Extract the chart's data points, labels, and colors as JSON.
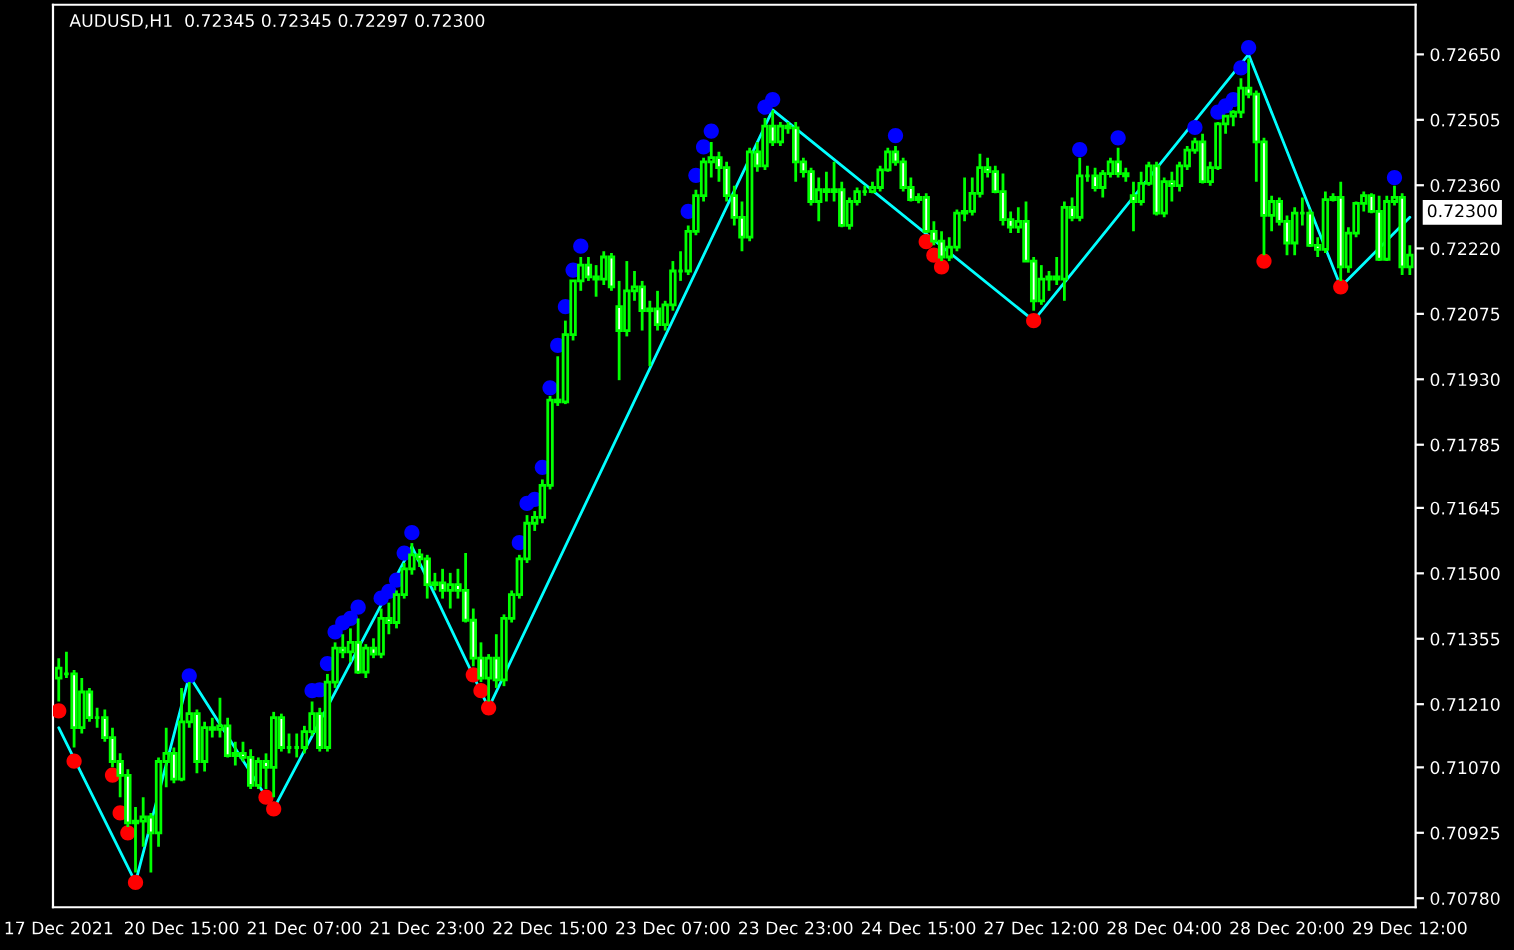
{
  "chart_data": {
    "type": "candlestick",
    "title": "AUDUSD,H1  0.72345 0.72345 0.72297 0.72300",
    "color": "#00ff00",
    "categories": [
      "17 Dec 2021",
      null,
      null,
      null,
      null,
      null,
      null,
      null,
      null,
      null,
      null,
      null,
      null,
      null,
      null,
      null,
      "20 Dec 15:00",
      null,
      null,
      null,
      null,
      null,
      null,
      null,
      null,
      null,
      null,
      null,
      null,
      null,
      null,
      null,
      "21 Dec 07:00",
      null,
      null,
      null,
      null,
      null,
      null,
      null,
      null,
      null,
      null,
      null,
      null,
      null,
      null,
      null,
      "21 Dec 23:00",
      null,
      null,
      null,
      null,
      null,
      null,
      null,
      null,
      null,
      null,
      null,
      null,
      null,
      null,
      null,
      "22 Dec 15:00",
      null,
      null,
      null,
      null,
      null,
      null,
      null,
      null,
      null,
      null,
      null,
      null,
      null,
      null,
      null,
      "23 Dec 07:00",
      null,
      null,
      null,
      null,
      null,
      null,
      null,
      null,
      null,
      null,
      null,
      null,
      null,
      null,
      null,
      "23 Dec 23:00",
      null,
      null,
      null,
      null,
      null,
      null,
      null,
      null,
      null,
      null,
      null,
      null,
      null,
      null,
      null,
      "24 Dec 15:00",
      null,
      null,
      null,
      null,
      null,
      null,
      null,
      null,
      null,
      null,
      null,
      null,
      null,
      null,
      null,
      "27 Dec 12:00",
      null,
      null,
      null,
      null,
      null,
      null,
      null,
      null,
      null,
      null,
      null,
      null,
      null,
      null,
      null,
      "28 Dec 04:00",
      null,
      null,
      null,
      null,
      null,
      null,
      null,
      null,
      null,
      null,
      null,
      null,
      null,
      null,
      null,
      "28 Dec 20:00",
      null,
      null,
      null,
      null,
      null,
      null,
      null,
      null,
      null,
      null,
      null,
      null,
      null,
      null,
      null,
      "29 Dec 12:00"
    ],
    "ohlc": [
      [
        0.71268,
        0.71312,
        0.71216,
        0.7129
      ],
      [
        0.71277,
        0.71326,
        0.71268,
        0.71277
      ],
      [
        0.71277,
        0.71286,
        0.71114,
        0.71158
      ],
      [
        0.71158,
        0.71268,
        0.71145,
        0.71237
      ],
      [
        0.71237,
        0.71246,
        0.71171,
        0.7118
      ],
      [
        0.7118,
        0.71202,
        0.71158,
        0.7118
      ],
      [
        0.7118,
        0.71198,
        0.71127,
        0.71136
      ],
      [
        0.71136,
        0.71158,
        0.7107,
        0.71083
      ],
      [
        0.71083,
        0.71101,
        0.71004,
        0.71052
      ],
      [
        0.71052,
        0.71066,
        0.70938,
        0.70947
      ],
      [
        0.70947,
        0.70982,
        0.70837,
        0.70951
      ],
      [
        0.70951,
        0.71004,
        0.70894,
        0.7096
      ],
      [
        0.7096,
        0.70969,
        0.70837,
        0.70925
      ],
      [
        0.70925,
        0.71092,
        0.70894,
        0.71083
      ],
      [
        0.71083,
        0.71158,
        0.71026,
        0.71101
      ],
      [
        0.71101,
        0.71114,
        0.71035,
        0.71044
      ],
      [
        0.71044,
        0.71246,
        0.71039,
        0.71171
      ],
      [
        0.71171,
        0.71259,
        0.71158,
        0.71189
      ],
      [
        0.71189,
        0.71198,
        0.71057,
        0.71083
      ],
      [
        0.71083,
        0.71171,
        0.71061,
        0.71158
      ],
      [
        0.71158,
        0.7118,
        0.71136,
        0.71154
      ],
      [
        0.71154,
        0.71224,
        0.71136,
        0.71162
      ],
      [
        0.71162,
        0.7118,
        0.71092,
        0.71096
      ],
      [
        0.71096,
        0.71127,
        0.71074,
        0.71101
      ],
      [
        0.71101,
        0.71127,
        0.71083,
        0.71092
      ],
      [
        0.71092,
        0.7111,
        0.71022,
        0.7103
      ],
      [
        0.7103,
        0.71092,
        0.71022,
        0.71083
      ],
      [
        0.71083,
        0.71101,
        0.71022,
        0.7107
      ],
      [
        0.7107,
        0.71193,
        0.71004,
        0.7118
      ],
      [
        0.7118,
        0.71189,
        0.71105,
        0.71114
      ],
      [
        0.71114,
        0.71145,
        0.71101,
        0.71114
      ],
      [
        0.71114,
        0.71145,
        0.71092,
        0.71114
      ],
      [
        0.71114,
        0.71162,
        0.71101,
        0.71149
      ],
      [
        0.71149,
        0.71216,
        0.7114,
        0.71189
      ],
      [
        0.71189,
        0.71202,
        0.71105,
        0.71114
      ],
      [
        0.71114,
        0.71277,
        0.71105,
        0.71259
      ],
      [
        0.71259,
        0.71347,
        0.71246,
        0.71334
      ],
      [
        0.71334,
        0.71365,
        0.71312,
        0.71326
      ],
      [
        0.71326,
        0.71378,
        0.71303,
        0.71347
      ],
      [
        0.71347,
        0.714,
        0.71277,
        0.71281
      ],
      [
        0.71281,
        0.71343,
        0.71268,
        0.71334
      ],
      [
        0.71334,
        0.71356,
        0.71312,
        0.71321
      ],
      [
        0.71321,
        0.71422,
        0.71312,
        0.714
      ],
      [
        0.714,
        0.71435,
        0.71365,
        0.71391
      ],
      [
        0.71391,
        0.71462,
        0.71378,
        0.71453
      ],
      [
        0.71453,
        0.71523,
        0.71444,
        0.7151
      ],
      [
        0.7151,
        0.71567,
        0.71497,
        0.71541
      ],
      [
        0.71541,
        0.71554,
        0.71514,
        0.71532
      ],
      [
        0.71532,
        0.71541,
        0.71444,
        0.71475
      ],
      [
        0.71475,
        0.71501,
        0.71462,
        0.71479
      ],
      [
        0.71479,
        0.7151,
        0.71444,
        0.71462
      ],
      [
        0.71462,
        0.71501,
        0.71422,
        0.71475
      ],
      [
        0.71475,
        0.7151,
        0.71444,
        0.71462
      ],
      [
        0.71462,
        0.71545,
        0.71391,
        0.71396
      ],
      [
        0.71396,
        0.71422,
        0.71294,
        0.71312
      ],
      [
        0.71312,
        0.71347,
        0.71259,
        0.71268
      ],
      [
        0.71268,
        0.71321,
        0.71216,
        0.71312
      ],
      [
        0.71312,
        0.71365,
        0.71246,
        0.71264
      ],
      [
        0.71264,
        0.71409,
        0.7125,
        0.714
      ],
      [
        0.714,
        0.71462,
        0.71391,
        0.71453
      ],
      [
        0.71453,
        0.71541,
        0.71444,
        0.71532
      ],
      [
        0.71532,
        0.71629,
        0.71523,
        0.71611
      ],
      [
        0.71611,
        0.71638,
        0.71594,
        0.71624
      ],
      [
        0.71624,
        0.71708,
        0.71611,
        0.71695
      ],
      [
        0.71695,
        0.71893,
        0.71686,
        0.71884
      ],
      [
        0.71884,
        0.71981,
        0.71871,
        0.7188
      ],
      [
        0.7188,
        0.7206,
        0.71875,
        0.72029
      ],
      [
        0.72029,
        0.72148,
        0.72016,
        0.72148
      ],
      [
        0.72148,
        0.72201,
        0.72126,
        0.72183
      ],
      [
        0.72183,
        0.72201,
        0.72148,
        0.72157
      ],
      [
        0.72157,
        0.72183,
        0.72113,
        0.72152
      ],
      [
        0.72152,
        0.72214,
        0.72139,
        0.72201
      ],
      [
        0.72201,
        0.7221,
        0.72126,
        0.72135
      ],
      [
        0.72091,
        0.72148,
        0.71928,
        0.72038
      ],
      [
        0.72038,
        0.72192,
        0.72025,
        0.72126
      ],
      [
        0.72126,
        0.7217,
        0.72104,
        0.72135
      ],
      [
        0.72135,
        0.72148,
        0.72038,
        0.72082
      ],
      [
        0.72082,
        0.72104,
        0.71959,
        0.72086
      ],
      [
        0.72086,
        0.72126,
        0.72038,
        0.72051
      ],
      [
        0.72051,
        0.72104,
        0.72038,
        0.72095
      ],
      [
        0.72095,
        0.72192,
        0.72082,
        0.7217
      ],
      [
        0.7217,
        0.72214,
        0.72148,
        0.7217
      ],
      [
        0.7217,
        0.72271,
        0.72161,
        0.72258
      ],
      [
        0.72258,
        0.7235,
        0.72249,
        0.72337
      ],
      [
        0.72337,
        0.72421,
        0.72324,
        0.72412
      ],
      [
        0.72412,
        0.72456,
        0.72377,
        0.72421
      ],
      [
        0.72421,
        0.72434,
        0.72368,
        0.72399
      ],
      [
        0.72399,
        0.72412,
        0.72324,
        0.72337
      ],
      [
        0.72337,
        0.72359,
        0.72271,
        0.72289
      ],
      [
        0.72289,
        0.72324,
        0.72214,
        0.72245
      ],
      [
        0.72245,
        0.72443,
        0.72236,
        0.72434
      ],
      [
        0.72434,
        0.72456,
        0.7239,
        0.72403
      ],
      [
        0.72403,
        0.72509,
        0.72394,
        0.72491
      ],
      [
        0.72491,
        0.72526,
        0.72447,
        0.72456
      ],
      [
        0.72456,
        0.725,
        0.72447,
        0.72491
      ],
      [
        0.72491,
        0.725,
        0.72474,
        0.72487
      ],
      [
        0.72487,
        0.725,
        0.72368,
        0.72412
      ],
      [
        0.72412,
        0.72421,
        0.72377,
        0.7239
      ],
      [
        0.7239,
        0.72399,
        0.72315,
        0.72324
      ],
      [
        0.72324,
        0.72377,
        0.7228,
        0.7235
      ],
      [
        0.7235,
        0.7239,
        0.72324,
        0.72346
      ],
      [
        0.72346,
        0.72412,
        0.72324,
        0.7235
      ],
      [
        0.7235,
        0.72368,
        0.72267,
        0.72271
      ],
      [
        0.72271,
        0.72333,
        0.72262,
        0.72324
      ],
      [
        0.72324,
        0.72355,
        0.72315,
        0.72346
      ],
      [
        0.72346,
        0.72359,
        0.72337,
        0.72346
      ],
      [
        0.72346,
        0.72368,
        0.72342,
        0.72355
      ],
      [
        0.72355,
        0.72403,
        0.72346,
        0.72394
      ],
      [
        0.72394,
        0.72443,
        0.7239,
        0.72434
      ],
      [
        0.72434,
        0.72447,
        0.72403,
        0.72412
      ],
      [
        0.72412,
        0.72421,
        0.72346,
        0.72355
      ],
      [
        0.72355,
        0.72377,
        0.72324,
        0.72328
      ],
      [
        0.72328,
        0.72342,
        0.7232,
        0.72333
      ],
      [
        0.72333,
        0.72342,
        0.72254,
        0.72258
      ],
      [
        0.72258,
        0.7228,
        0.72227,
        0.72236
      ],
      [
        0.72236,
        0.72258,
        0.72192,
        0.72201
      ],
      [
        0.72201,
        0.72245,
        0.72192,
        0.72223
      ],
      [
        0.72223,
        0.72306,
        0.72214,
        0.72298
      ],
      [
        0.72298,
        0.72377,
        0.7228,
        0.72302
      ],
      [
        0.72302,
        0.72377,
        0.72293,
        0.72342
      ],
      [
        0.72342,
        0.7243,
        0.72333,
        0.72399
      ],
      [
        0.72399,
        0.72421,
        0.72377,
        0.7239
      ],
      [
        0.7239,
        0.72403,
        0.72342,
        0.72346
      ],
      [
        0.72346,
        0.72386,
        0.72271,
        0.72284
      ],
      [
        0.72284,
        0.72302,
        0.72254,
        0.72267
      ],
      [
        0.72267,
        0.72311,
        0.72254,
        0.7228
      ],
      [
        0.7228,
        0.72324,
        0.72192,
        0.72192
      ],
      [
        0.72192,
        0.72201,
        0.72082,
        0.72104
      ],
      [
        0.72104,
        0.72183,
        0.72095,
        0.72152
      ],
      [
        0.72152,
        0.7217,
        0.72126,
        0.72157
      ],
      [
        0.72157,
        0.72201,
        0.72139,
        0.72152
      ],
      [
        0.72152,
        0.72324,
        0.72104,
        0.72311
      ],
      [
        0.72311,
        0.72333,
        0.7228,
        0.72289
      ],
      [
        0.72289,
        0.72421,
        0.7228,
        0.72381
      ],
      [
        0.72381,
        0.72403,
        0.72368,
        0.72381
      ],
      [
        0.72381,
        0.72399,
        0.72346,
        0.72355
      ],
      [
        0.72355,
        0.72394,
        0.72333,
        0.72386
      ],
      [
        0.72386,
        0.72421,
        0.72377,
        0.72412
      ],
      [
        0.72412,
        0.72443,
        0.72377,
        0.72386
      ],
      [
        0.72386,
        0.72399,
        0.72368,
        0.72381
      ],
      [
        0.72337,
        0.72368,
        0.72258,
        0.72324
      ],
      [
        0.72324,
        0.7239,
        0.72315,
        0.72364
      ],
      [
        0.72364,
        0.72412,
        0.72359,
        0.72403
      ],
      [
        0.72403,
        0.72412,
        0.72293,
        0.72298
      ],
      [
        0.72298,
        0.72377,
        0.72289,
        0.72368
      ],
      [
        0.72368,
        0.7239,
        0.72324,
        0.72359
      ],
      [
        0.72359,
        0.72412,
        0.72346,
        0.72403
      ],
      [
        0.72403,
        0.72447,
        0.72394,
        0.72438
      ],
      [
        0.72438,
        0.72465,
        0.7243,
        0.72456
      ],
      [
        0.72456,
        0.72474,
        0.72364,
        0.72368
      ],
      [
        0.72368,
        0.72412,
        0.72359,
        0.72399
      ],
      [
        0.72399,
        0.725,
        0.72394,
        0.72496
      ],
      [
        0.72496,
        0.72513,
        0.72474,
        0.72513
      ],
      [
        0.72513,
        0.72526,
        0.72491,
        0.72522
      ],
      [
        0.72522,
        0.72597,
        0.72509,
        0.72575
      ],
      [
        0.72575,
        0.72641,
        0.72553,
        0.72562
      ],
      [
        0.72562,
        0.7257,
        0.72368,
        0.72456
      ],
      [
        0.72456,
        0.72465,
        0.72205,
        0.72293
      ],
      [
        0.72293,
        0.72337,
        0.72258,
        0.72324
      ],
      [
        0.72324,
        0.72333,
        0.72271,
        0.7228
      ],
      [
        0.7228,
        0.72293,
        0.72205,
        0.72232
      ],
      [
        0.72232,
        0.72311,
        0.72205,
        0.72298
      ],
      [
        0.72298,
        0.72333,
        0.72271,
        0.72298
      ],
      [
        0.72298,
        0.72306,
        0.72223,
        0.72227
      ],
      [
        0.72227,
        0.72245,
        0.72201,
        0.72218
      ],
      [
        0.72218,
        0.72346,
        0.7221,
        0.72328
      ],
      [
        0.72328,
        0.72342,
        0.72324,
        0.72333
      ],
      [
        0.72333,
        0.72368,
        0.72148,
        0.72179
      ],
      [
        0.72179,
        0.72267,
        0.72166,
        0.72254
      ],
      [
        0.72254,
        0.72324,
        0.72245,
        0.7232
      ],
      [
        0.7232,
        0.72346,
        0.72302,
        0.72337
      ],
      [
        0.72337,
        0.72342,
        0.72298,
        0.72302
      ],
      [
        0.72302,
        0.72337,
        0.72192,
        0.72196
      ],
      [
        0.72196,
        0.72337,
        0.72192,
        0.72324
      ],
      [
        0.72324,
        0.72359,
        0.72315,
        0.72333
      ],
      [
        0.72333,
        0.72342,
        0.72161,
        0.72179
      ],
      [
        0.72179,
        0.72227,
        0.72161,
        0.72205
      ]
    ],
    "series": [
      {
        "type": "line",
        "color": "#00ffff",
        "values": [
          0.71158,
          null,
          null,
          null,
          null,
          null,
          null,
          null,
          null,
          null,
          0.70815,
          null,
          null,
          null,
          null,
          null,
          null,
          0.71273,
          null,
          null,
          null,
          null,
          null,
          null,
          null,
          null,
          null,
          null,
          0.70978,
          null,
          null,
          null,
          null,
          null,
          null,
          null,
          null,
          null,
          null,
          null,
          null,
          null,
          null,
          null,
          null,
          null,
          0.71559,
          null,
          null,
          null,
          null,
          null,
          null,
          null,
          null,
          null,
          0.71202,
          null,
          null,
          null,
          null,
          null,
          null,
          null,
          null,
          null,
          null,
          null,
          null,
          null,
          null,
          null,
          null,
          null,
          null,
          null,
          null,
          null,
          null,
          null,
          null,
          null,
          null,
          null,
          null,
          null,
          null,
          null,
          null,
          null,
          null,
          null,
          null,
          0.72527,
          null,
          null,
          null,
          null,
          null,
          null,
          null,
          null,
          null,
          null,
          null,
          null,
          null,
          null,
          null,
          null,
          null,
          null,
          null,
          null,
          null,
          null,
          null,
          null,
          null,
          null,
          null,
          null,
          null,
          null,
          null,
          null,
          null,
          0.7206,
          null,
          null,
          null,
          null,
          null,
          null,
          null,
          null,
          null,
          null,
          null,
          null,
          null,
          null,
          null,
          null,
          null,
          null,
          null,
          null,
          null,
          null,
          null,
          null,
          null,
          null,
          null,
          0.7265,
          null,
          null,
          null,
          null,
          null,
          null,
          null,
          null,
          null,
          null,
          null,
          0.72135,
          null,
          null,
          null,
          null,
          null,
          null,
          null,
          null,
          0.72289
        ]
      },
      {
        "type": "scatter",
        "color": "#0000ff",
        "values": [
          null,
          null,
          null,
          null,
          null,
          null,
          null,
          null,
          null,
          null,
          null,
          null,
          null,
          null,
          null,
          null,
          null,
          0.71273,
          null,
          null,
          null,
          null,
          null,
          null,
          null,
          null,
          null,
          null,
          null,
          null,
          null,
          null,
          null,
          0.7124,
          0.71242,
          0.713,
          0.7137,
          0.7139,
          0.714,
          0.71425,
          null,
          null,
          0.71445,
          0.7146,
          0.71485,
          0.71545,
          0.7159,
          null,
          null,
          null,
          null,
          null,
          null,
          null,
          null,
          null,
          null,
          null,
          null,
          null,
          0.71568,
          0.71655,
          0.71664,
          0.71735,
          0.71911,
          0.72005,
          0.72091,
          0.72172,
          0.72225,
          null,
          null,
          null,
          null,
          null,
          null,
          null,
          null,
          null,
          null,
          null,
          null,
          null,
          0.72302,
          0.72382,
          0.72445,
          0.7248,
          null,
          null,
          null,
          null,
          null,
          null,
          0.72533,
          0.7255,
          null,
          null,
          null,
          null,
          null,
          null,
          null,
          null,
          null,
          null,
          null,
          null,
          null,
          null,
          null,
          0.7247,
          null,
          null,
          null,
          null,
          null,
          null,
          null,
          null,
          null,
          null,
          null,
          null,
          null,
          null,
          null,
          null,
          null,
          null,
          null,
          null,
          null,
          null,
          null,
          0.72439,
          null,
          null,
          null,
          null,
          0.72465,
          null,
          null,
          null,
          null,
          null,
          null,
          null,
          null,
          null,
          0.72488,
          null,
          null,
          0.72522,
          0.72536,
          0.7255,
          0.7262,
          0.72665,
          null,
          null,
          null,
          null,
          null,
          null,
          null,
          null,
          null,
          null,
          null,
          null,
          null,
          null,
          null,
          null,
          null,
          null,
          0.72377,
          null,
          null
        ]
      },
      {
        "type": "scatter",
        "color": "#ff0000",
        "values": [
          0.71195,
          null,
          0.71084,
          null,
          null,
          null,
          null,
          0.71053,
          0.70969,
          0.70925,
          0.70815,
          null,
          null,
          null,
          null,
          null,
          null,
          null,
          null,
          null,
          null,
          null,
          null,
          null,
          null,
          null,
          null,
          0.71004,
          0.70978,
          null,
          null,
          null,
          null,
          null,
          null,
          null,
          null,
          null,
          null,
          null,
          null,
          null,
          null,
          null,
          null,
          null,
          null,
          null,
          null,
          null,
          null,
          null,
          null,
          null,
          0.71275,
          0.7124,
          0.71202,
          null,
          null,
          null,
          null,
          null,
          null,
          null,
          null,
          null,
          null,
          null,
          null,
          null,
          null,
          null,
          null,
          null,
          null,
          null,
          null,
          null,
          null,
          null,
          null,
          null,
          null,
          null,
          null,
          null,
          null,
          null,
          null,
          null,
          null,
          null,
          null,
          null,
          null,
          null,
          null,
          null,
          null,
          null,
          null,
          null,
          null,
          null,
          null,
          null,
          null,
          null,
          null,
          null,
          null,
          null,
          null,
          0.72235,
          0.72205,
          0.72179,
          null,
          null,
          null,
          null,
          null,
          null,
          null,
          null,
          null,
          null,
          null,
          0.7206,
          null,
          null,
          null,
          null,
          null,
          null,
          null,
          null,
          null,
          null,
          null,
          null,
          null,
          null,
          null,
          null,
          null,
          null,
          null,
          null,
          null,
          null,
          null,
          null,
          null,
          null,
          null,
          null,
          null,
          0.72192,
          null,
          null,
          null,
          null,
          null,
          null,
          null,
          null,
          null,
          0.72135,
          null,
          null,
          null,
          null,
          null,
          null,
          null,
          null,
          null
        ]
      }
    ],
    "ylim": [
      0.7076,
      0.7276
    ],
    "yticks": [
      {
        "value": 0.7265,
        "label": "0.72650"
      },
      {
        "value": 0.72505,
        "label": "0.72505"
      },
      {
        "value": 0.7236,
        "label": "0.72360"
      },
      {
        "value": 0.7222,
        "label": "0.72220"
      },
      {
        "value": 0.72075,
        "label": "0.72075"
      },
      {
        "value": 0.7193,
        "label": "0.71930"
      },
      {
        "value": 0.71785,
        "label": "0.71785"
      },
      {
        "value": 0.71645,
        "label": "0.71645"
      },
      {
        "value": 0.715,
        "label": "0.71500"
      },
      {
        "value": 0.71355,
        "label": "0.71355"
      },
      {
        "value": 0.7121,
        "label": "0.71210"
      },
      {
        "value": 0.7107,
        "label": "0.71070"
      },
      {
        "value": 0.70925,
        "label": "0.70925"
      },
      {
        "value": 0.7078,
        "label": "0.70780"
      }
    ],
    "annotations": [
      "0.72300"
    ]
  }
}
